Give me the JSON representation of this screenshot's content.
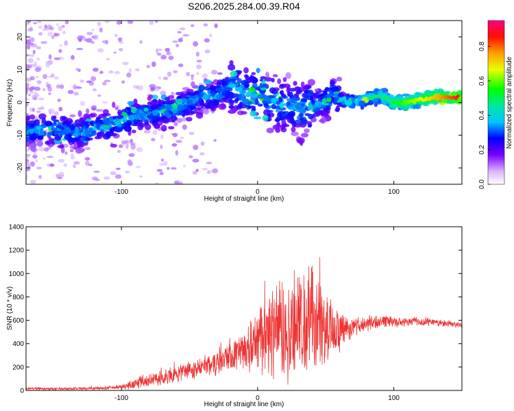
{
  "title": "S206.2025.284.00.39.R04",
  "chart_data": [
    {
      "type": "heatmap",
      "name": "spectrogram",
      "xlabel": "Height of straight line (km)",
      "ylabel": "Frequency (Hz)",
      "xlim": [
        -170,
        150
      ],
      "ylim": [
        -25,
        25
      ],
      "xticks": [
        -100,
        0,
        100
      ],
      "yticks": [
        -20,
        -10,
        0,
        10,
        20
      ],
      "ridge": {
        "x": [
          -170,
          -150,
          -130,
          -110,
          -100,
          -90,
          -70,
          -60,
          -50,
          -40,
          -30,
          -20,
          -10,
          0,
          10,
          20,
          30,
          40,
          50,
          55,
          60,
          70,
          80,
          90,
          100,
          110,
          120,
          130,
          150
        ],
        "y": [
          -9,
          -8,
          -9,
          -7,
          -6,
          -4,
          -3,
          -2,
          0,
          2,
          2,
          5,
          3,
          2,
          0,
          -1,
          -2,
          -1,
          0,
          3,
          1,
          0,
          1,
          2,
          0,
          0,
          1,
          1.5,
          1.5
        ]
      },
      "colorbar": {
        "label": "Normalized spectral amplitude",
        "range": [
          0,
          0.95
        ],
        "ticks": [
          "0.0",
          "0.2",
          "0.4",
          "0.6",
          "0.8"
        ]
      }
    },
    {
      "type": "line",
      "name": "snr",
      "xlabel": "Height of straight line (km)",
      "ylabel": "SNR (10 * v/v)",
      "xlim": [
        -170,
        150
      ],
      "ylim": [
        0,
        1400
      ],
      "xticks": [
        -100,
        0,
        100
      ],
      "yticks": [
        0,
        200,
        400,
        600,
        800,
        1000,
        1200,
        1400
      ],
      "color": "#ee3333",
      "envelope": {
        "x": [
          -170,
          -140,
          -110,
          -100,
          -90,
          -80,
          -70,
          -60,
          -50,
          -40,
          -30,
          -20,
          -10,
          0,
          10,
          20,
          30,
          40,
          50,
          60,
          70,
          80,
          90,
          100,
          110,
          120,
          130,
          140,
          150
        ],
        "mean": [
          15,
          15,
          20,
          30,
          60,
          90,
          110,
          140,
          170,
          200,
          240,
          300,
          330,
          400,
          500,
          520,
          560,
          600,
          560,
          500,
          540,
          580,
          580,
          580,
          590,
          590,
          585,
          570,
          560
        ],
        "spread": [
          12,
          12,
          15,
          20,
          50,
          60,
          70,
          80,
          80,
          90,
          110,
          130,
          160,
          250,
          380,
          450,
          480,
          480,
          400,
          200,
          100,
          70,
          60,
          50,
          45,
          40,
          35,
          30,
          25
        ]
      }
    }
  ]
}
